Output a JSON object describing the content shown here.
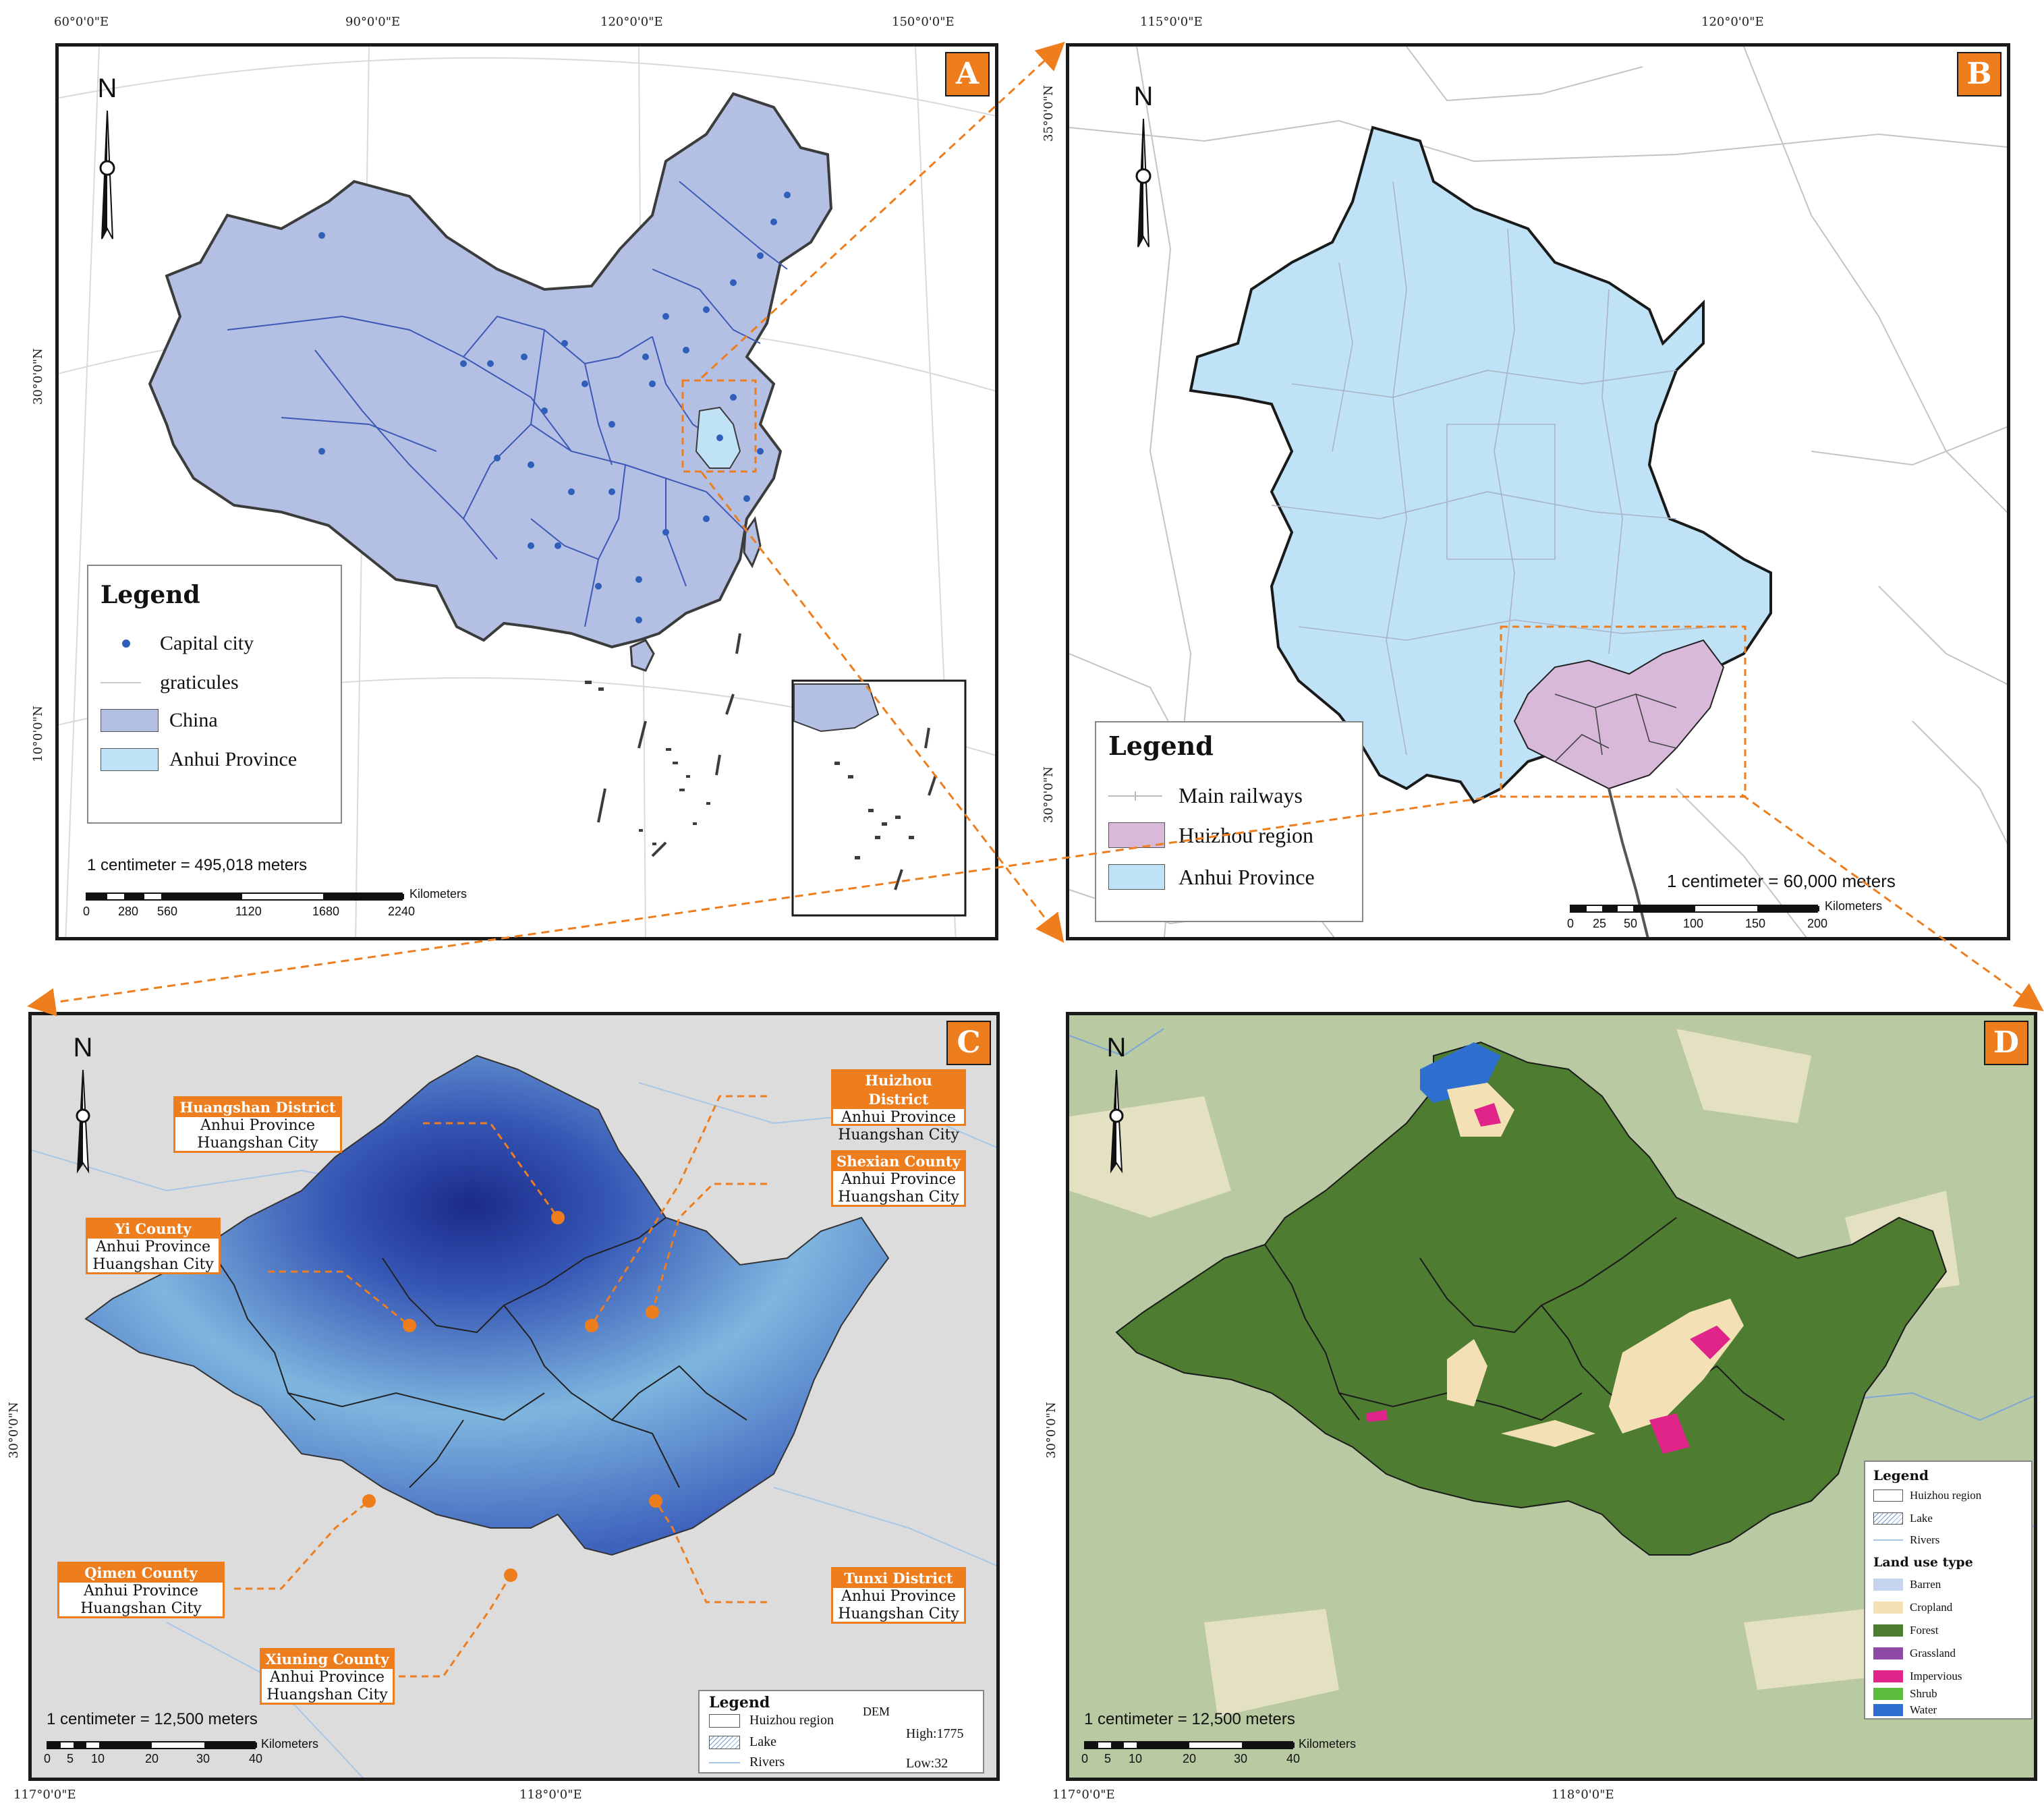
{
  "colors": {
    "accent": "#ee7d1d",
    "china_fill": "#b3c0e4",
    "anhui_fill": "#bfe2f6",
    "huizhou_fill": "#d8b9da",
    "capital_dot": "#2f5fb8",
    "forest": "#4e7d32",
    "cropland": "#f3e0b4",
    "impervious": "#e0248a",
    "water": "#2f6fcf",
    "barren": "#c6d4ee",
    "grassland": "#8e4aa4",
    "shrub": "#5dbb3e"
  },
  "panelA": {
    "letter": "A",
    "north": "N",
    "top_ticks": [
      "60°0'0\"E",
      "90°0'0\"E",
      "120°0'0\"E",
      "150°0'0\"E"
    ],
    "left_ticks": [
      "30°0'0\"N",
      "10°0'0\"N"
    ],
    "legend": {
      "title": "Legend",
      "items": [
        "Capital city",
        "graticules",
        "China",
        "Anhui Province"
      ]
    },
    "scale_text": "1 centimeter = 495,018 meters",
    "scale_unit": "Kilometers",
    "scale_numbers": [
      "0",
      "280",
      "560",
      "1120",
      "1680",
      "2240"
    ]
  },
  "panelB": {
    "letter": "B",
    "north": "N",
    "top_ticks": [
      "115°0'0\"E",
      "120°0'0\"E"
    ],
    "left_ticks": [
      "35°0'0\"N",
      "30°0'0\"N"
    ],
    "legend": {
      "title": "Legend",
      "items": [
        "Main railways",
        "Huizhou region",
        "Anhui Province"
      ]
    },
    "scale_text": "1 centimeter = 60,000 meters",
    "scale_unit": "Kilometers",
    "scale_numbers": [
      "0",
      "25",
      "50",
      "100",
      "150",
      "200"
    ]
  },
  "panelC": {
    "letter": "C",
    "north": "N",
    "bottom_ticks": [
      "117°0'0\"E",
      "118°0'0\"E"
    ],
    "left_ticks": [
      "30°0'0\"N"
    ],
    "callouts": [
      {
        "name": "Huangshan District",
        "l1": "Anhui Province",
        "l2": "Huangshan City"
      },
      {
        "name": "Huizhou District",
        "l1": "Anhui Province",
        "l2": "Huangshan City"
      },
      {
        "name": "Shexian County",
        "l1": "Anhui Province",
        "l2": "Huangshan City"
      },
      {
        "name": "Yi County",
        "l1": "Anhui Province",
        "l2": "Huangshan City"
      },
      {
        "name": "Qimen County",
        "l1": "Anhui Province",
        "l2": "Huangshan City"
      },
      {
        "name": "Xiuning County",
        "l1": "Anhui Province",
        "l2": "Huangshan City"
      },
      {
        "name": "Tunxi District",
        "l1": "Anhui Province",
        "l2": "Huangshan City"
      }
    ],
    "legend": {
      "title": "Legend",
      "items": [
        "Huizhou region",
        "Lake",
        "Rivers"
      ],
      "dem_title": "DEM",
      "dem_high": "High:1775",
      "dem_low": "Low:32"
    },
    "scale_text": "1 centimeter = 12,500 meters",
    "scale_unit": "Kilometers",
    "scale_numbers": [
      "0",
      "5",
      "10",
      "20",
      "30",
      "40"
    ]
  },
  "panelD": {
    "letter": "D",
    "north": "N",
    "bottom_ticks": [
      "117°0'0\"E",
      "118°0'0\"E"
    ],
    "left_ticks": [
      "30°0'0\"N"
    ],
    "legend": {
      "title": "Legend",
      "items": [
        "Huizhou region",
        "Lake",
        "Rivers"
      ],
      "landuse_title": "Land use type",
      "landuse": [
        "Barren",
        "Cropland",
        "Forest",
        "Grassland",
        "Impervious",
        "Shrub",
        "Water"
      ]
    },
    "scale_text": "1 centimeter = 12,500 meters",
    "scale_unit": "Kilometers",
    "scale_numbers": [
      "0",
      "5",
      "10",
      "20",
      "30",
      "40"
    ]
  }
}
